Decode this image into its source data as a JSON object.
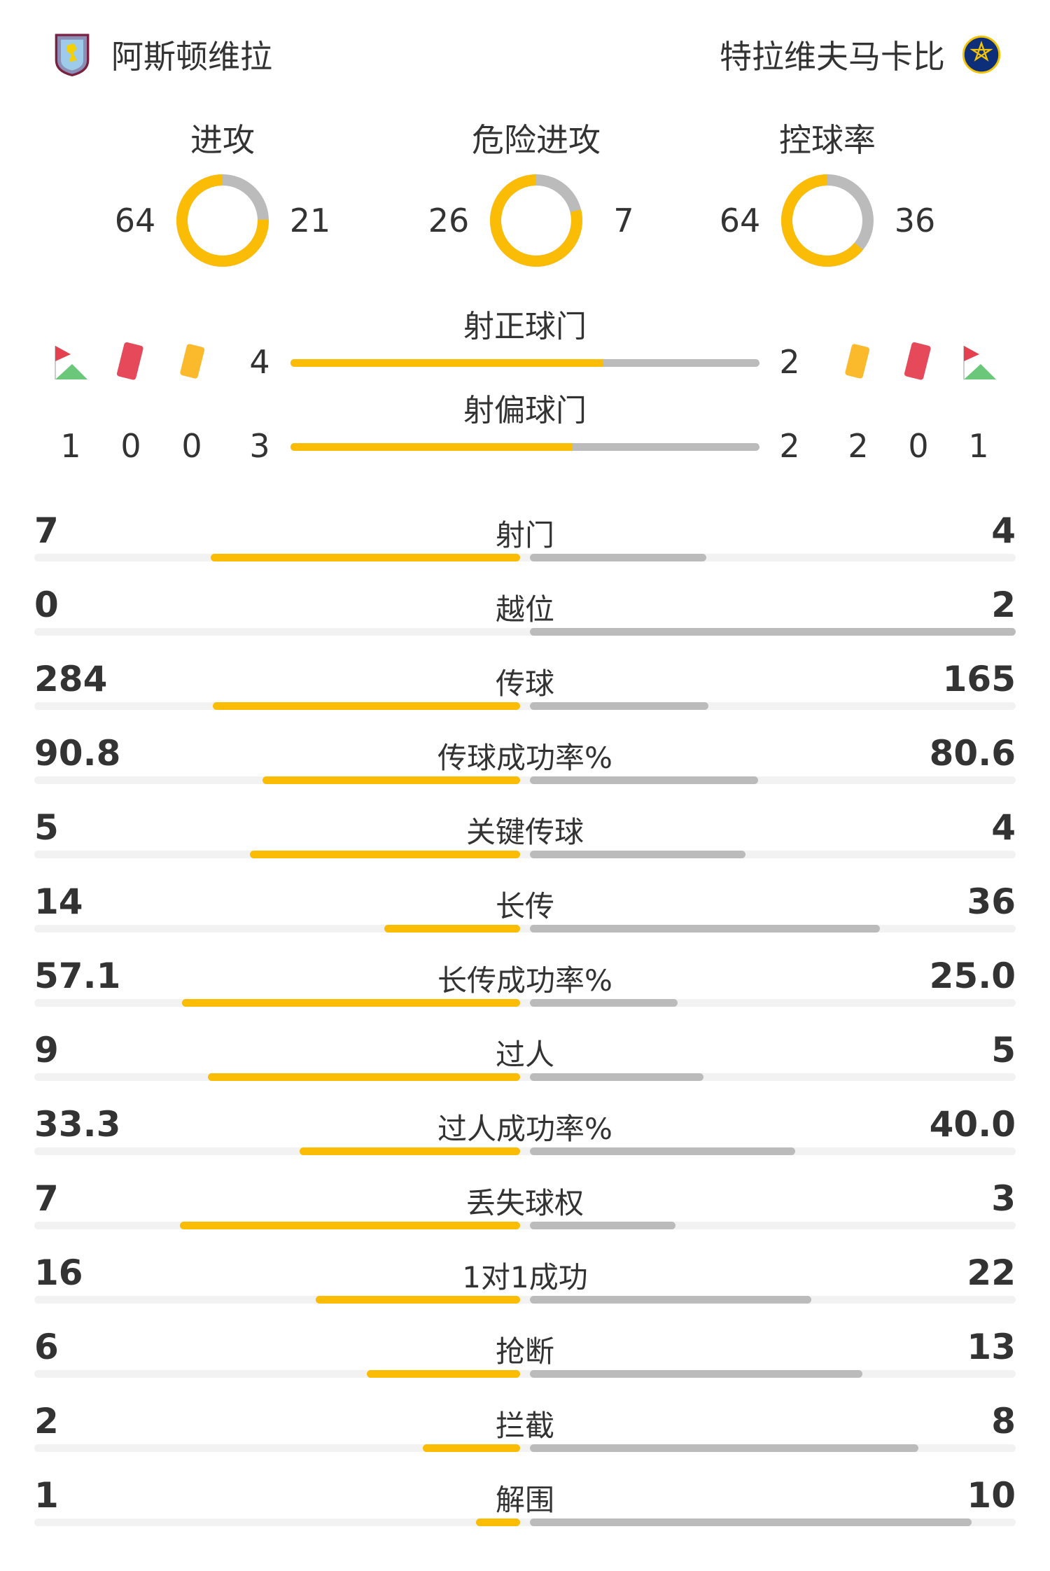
{
  "teams": {
    "home": "阿斯顿维拉",
    "away": "特拉维夫马卡比"
  },
  "colors": {
    "home": "#fbbc05",
    "away": "#bbbbbb",
    "track": "#f2f2f2"
  },
  "donuts": [
    {
      "label": "进攻",
      "home": 64,
      "away": 21
    },
    {
      "label": "危险进攻",
      "home": 26,
      "away": 7
    },
    {
      "label": "控球率",
      "home": 64,
      "away": 36
    }
  ],
  "shots_on": {
    "label": "射正球门",
    "home": 4,
    "away": 2
  },
  "shots_off": {
    "label": "射偏球门",
    "home": 3,
    "away": 2
  },
  "discipline": {
    "home": {
      "corners": 1,
      "red_cards": 0,
      "yellow_cards": 0
    },
    "away": {
      "corners": 1,
      "red_cards": 0,
      "yellow_cards": 2
    }
  },
  "icons": [
    "corner-flag-icon",
    "red-card-icon",
    "yellow-card-icon"
  ],
  "stats": [
    {
      "label": "射门",
      "home": "7",
      "away": "4"
    },
    {
      "label": "越位",
      "home": "0",
      "away": "2"
    },
    {
      "label": "传球",
      "home": "284",
      "away": "165"
    },
    {
      "label": "传球成功率%",
      "home": "90.8",
      "away": "80.6"
    },
    {
      "label": "关键传球",
      "home": "5",
      "away": "4"
    },
    {
      "label": "长传",
      "home": "14",
      "away": "36"
    },
    {
      "label": "长传成功率%",
      "home": "57.1",
      "away": "25.0"
    },
    {
      "label": "过人",
      "home": "9",
      "away": "5"
    },
    {
      "label": "过人成功率%",
      "home": "33.3",
      "away": "40.0"
    },
    {
      "label": "丢失球权",
      "home": "7",
      "away": "3"
    },
    {
      "label": "1对1成功",
      "home": "16",
      "away": "22"
    },
    {
      "label": "抢断",
      "home": "6",
      "away": "13"
    },
    {
      "label": "拦截",
      "home": "2",
      "away": "8"
    },
    {
      "label": "解围",
      "home": "1",
      "away": "10"
    }
  ]
}
